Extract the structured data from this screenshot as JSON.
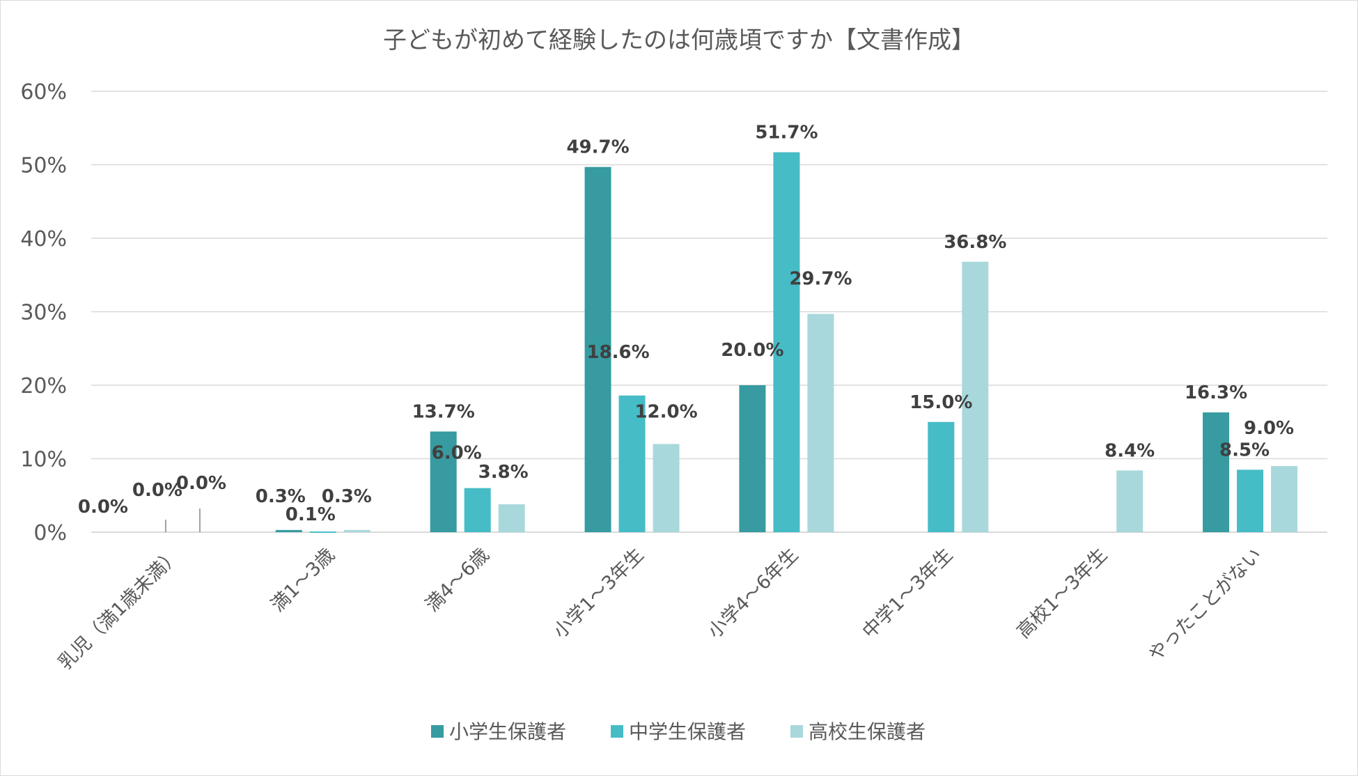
{
  "chart_data": {
    "type": "bar",
    "title": "子どもが初めて経験したのは何歳頃ですか【文書作成】",
    "xlabel": "",
    "ylabel": "",
    "ylim": [
      0,
      60
    ],
    "yticks": [
      "0%",
      "10%",
      "20%",
      "30%",
      "40%",
      "50%",
      "60%"
    ],
    "ytick_values": [
      0,
      10,
      20,
      30,
      40,
      50,
      60
    ],
    "categories": [
      "乳児（満1歳未満）",
      "満1～3歳",
      "満4～6歳",
      "小学1～3年生",
      "小学4～6年生",
      "中学1～3年生",
      "高校1～3年生",
      "やったことがない"
    ],
    "series": [
      {
        "name": "小学生保護者",
        "color": "#379ba1",
        "values": [
          0.0,
          0.3,
          13.7,
          49.7,
          20.0,
          null,
          null,
          16.3
        ],
        "labels": [
          "0.0%",
          "0.3%",
          "13.7%",
          "49.7%",
          "20.0%",
          "",
          "",
          "16.3%"
        ]
      },
      {
        "name": "中学生保護者",
        "color": "#46bcc6",
        "values": [
          0.0,
          0.1,
          6.0,
          18.6,
          51.7,
          15.0,
          null,
          8.5
        ],
        "labels": [
          "0.0%",
          "0.1%",
          "6.0%",
          "18.6%",
          "51.7%",
          "15.0%",
          "",
          "8.5%"
        ]
      },
      {
        "name": "高校生保護者",
        "color": "#a8d8dc",
        "values": [
          0.0,
          0.3,
          3.8,
          12.0,
          29.7,
          36.8,
          8.4,
          9.0
        ],
        "labels": [
          "0.0%",
          "0.3%",
          "3.8%",
          "12.0%",
          "29.7%",
          "36.8%",
          "8.4%",
          "9.0%"
        ]
      }
    ],
    "grid": true,
    "gridline_color": "#d9d9d9",
    "legend_position": "bottom"
  }
}
